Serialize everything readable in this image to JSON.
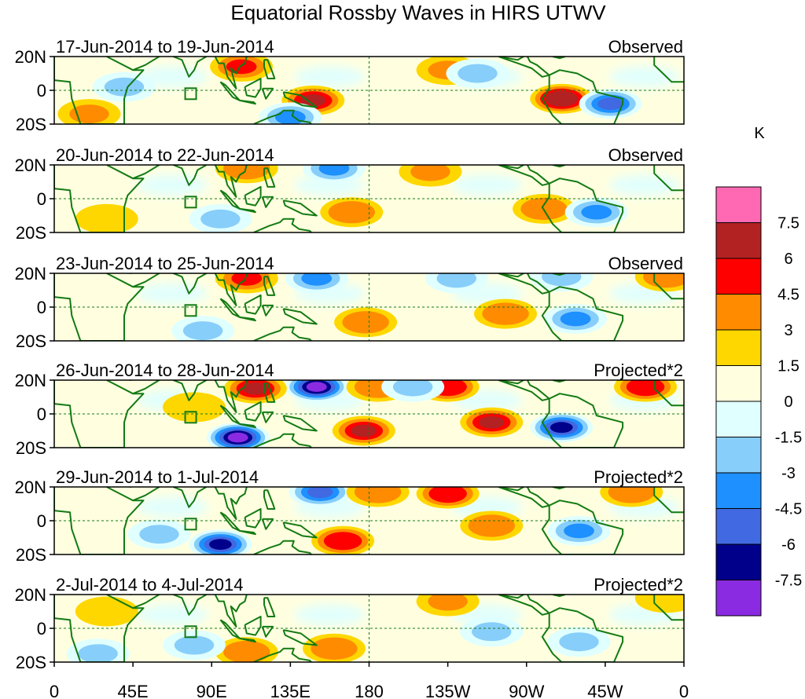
{
  "chart_data": {
    "type": "heatmap",
    "title": "Equatorial Rossby Waves in HIRS UTWV",
    "colorbar": {
      "units": "K",
      "levels": [
        -7.5,
        -6,
        -4.5,
        -3,
        -1.5,
        0,
        1.5,
        3,
        4.5,
        6,
        7.5
      ],
      "level_labels": [
        "-7.5",
        "-6",
        "-4.5",
        "-3",
        "-1.5",
        "0",
        "1.5",
        "3",
        "4.5",
        "6",
        "7.5"
      ],
      "colors": [
        "#8a2be2",
        "#00008b",
        "#4169e1",
        "#1e90ff",
        "#87cefa",
        "#e0ffff",
        "#ffffe0",
        "#ffd700",
        "#ff8c00",
        "#ff0000",
        "#b22222",
        "#ff69b4"
      ]
    },
    "x_ticks": [
      "0",
      "45E",
      "90E",
      "135E",
      "180",
      "135W",
      "90W",
      "45W",
      "0"
    ],
    "x_range_lon": [
      0,
      360
    ],
    "y_ticks": [
      "20N",
      "0",
      "20S"
    ],
    "y_range_lat": [
      -20,
      20
    ],
    "panels": [
      {
        "date_range": "17-Jun-2014 to 19-Jun-2014",
        "kind": "Observed",
        "anomalies": [
          {
            "lon": 148,
            "lat": -6,
            "value": 6
          },
          {
            "lon": 107,
            "lat": 14,
            "value": 4.5
          },
          {
            "lon": 135,
            "lat": -16,
            "value": -4.5
          },
          {
            "lon": 290,
            "lat": -5,
            "value": 6.5
          },
          {
            "lon": 318,
            "lat": -8,
            "value": -5
          },
          {
            "lon": 225,
            "lat": 12,
            "value": 3
          },
          {
            "lon": 242,
            "lat": 10,
            "value": -2.5
          },
          {
            "lon": 20,
            "lat": -14,
            "value": 3
          },
          {
            "lon": 40,
            "lat": 2,
            "value": -2
          }
        ]
      },
      {
        "date_range": "20-Jun-2014 to 22-Jun-2014",
        "kind": "Observed",
        "anomalies": [
          {
            "lon": 160,
            "lat": 18,
            "value": -3.5
          },
          {
            "lon": 110,
            "lat": 18,
            "value": 4
          },
          {
            "lon": 170,
            "lat": -8,
            "value": 3.5
          },
          {
            "lon": 215,
            "lat": 16,
            "value": 3
          },
          {
            "lon": 280,
            "lat": -6,
            "value": 3.5
          },
          {
            "lon": 310,
            "lat": -8,
            "value": -4.5
          },
          {
            "lon": 95,
            "lat": -12,
            "value": -2
          },
          {
            "lon": 30,
            "lat": -12,
            "value": 2
          }
        ]
      },
      {
        "date_range": "23-Jun-2014 to 25-Jun-2014",
        "kind": "Observed",
        "anomalies": [
          {
            "lon": 110,
            "lat": 17,
            "value": 4.5
          },
          {
            "lon": 150,
            "lat": 17,
            "value": -4
          },
          {
            "lon": 178,
            "lat": -9,
            "value": 3.5
          },
          {
            "lon": 258,
            "lat": -4,
            "value": 3.5
          },
          {
            "lon": 298,
            "lat": -7,
            "value": -4
          },
          {
            "lon": 230,
            "lat": 17,
            "value": -2.5
          },
          {
            "lon": 290,
            "lat": 18,
            "value": -2
          },
          {
            "lon": 350,
            "lat": 18,
            "value": 4
          },
          {
            "lon": 85,
            "lat": -14,
            "value": -2
          }
        ]
      },
      {
        "date_range": "26-Jun-2014 to 28-Jun-2014",
        "kind": "Projected*2",
        "anomalies": [
          {
            "lon": 105,
            "lat": -14,
            "value": -8
          },
          {
            "lon": 150,
            "lat": 16,
            "value": -8
          },
          {
            "lon": 115,
            "lat": 15,
            "value": 6
          },
          {
            "lon": 177,
            "lat": -10,
            "value": 6
          },
          {
            "lon": 250,
            "lat": -5,
            "value": 6
          },
          {
            "lon": 290,
            "lat": -8,
            "value": -7
          },
          {
            "lon": 225,
            "lat": 16,
            "value": 5
          },
          {
            "lon": 185,
            "lat": 16,
            "value": 4
          },
          {
            "lon": 205,
            "lat": 16,
            "value": -3
          },
          {
            "lon": 338,
            "lat": 16,
            "value": 5
          },
          {
            "lon": 80,
            "lat": 4,
            "value": 2
          }
        ]
      },
      {
        "date_range": "29-Jun-2014 to 1-Jul-2014",
        "kind": "Projected*2",
        "anomalies": [
          {
            "lon": 95,
            "lat": -14,
            "value": -6.5
          },
          {
            "lon": 152,
            "lat": 17,
            "value": -6
          },
          {
            "lon": 165,
            "lat": -12,
            "value": 5
          },
          {
            "lon": 225,
            "lat": 16,
            "value": 5
          },
          {
            "lon": 250,
            "lat": -3,
            "value": 4
          },
          {
            "lon": 300,
            "lat": -6,
            "value": -4
          },
          {
            "lon": 330,
            "lat": 17,
            "value": 4
          },
          {
            "lon": 185,
            "lat": 17,
            "value": 4
          },
          {
            "lon": 60,
            "lat": -8,
            "value": -3
          }
        ]
      },
      {
        "date_range": "2-Jul-2014 to 4-Jul-2014",
        "kind": "Projected*2",
        "anomalies": [
          {
            "lon": 110,
            "lat": -14,
            "value": 3.5
          },
          {
            "lon": 160,
            "lat": -12,
            "value": 3.5
          },
          {
            "lon": 80,
            "lat": -10,
            "value": -3
          },
          {
            "lon": 225,
            "lat": 16,
            "value": 3
          },
          {
            "lon": 250,
            "lat": -2,
            "value": -2
          },
          {
            "lon": 300,
            "lat": -8,
            "value": -2
          },
          {
            "lon": 25,
            "lat": -15,
            "value": -2
          },
          {
            "lon": 30,
            "lat": 10,
            "value": 2
          },
          {
            "lon": 350,
            "lat": 18,
            "value": 2
          }
        ]
      }
    ]
  }
}
